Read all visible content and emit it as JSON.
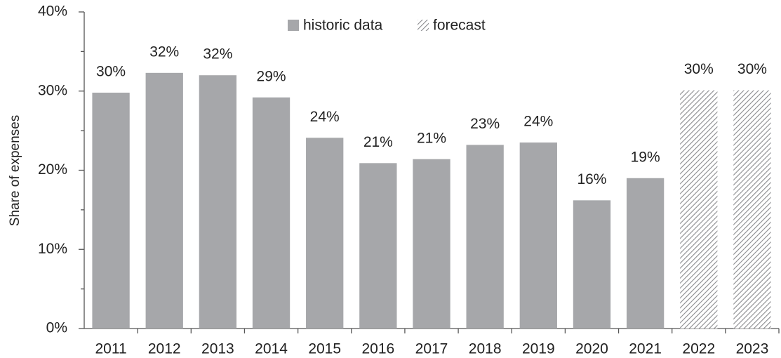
{
  "chart_data": {
    "type": "bar",
    "y_label": "Share of expenses",
    "categories": [
      "2011",
      "2012",
      "2013",
      "2014",
      "2015",
      "2016",
      "2017",
      "2018",
      "2019",
      "2020",
      "2021",
      "2022",
      "2023"
    ],
    "series": [
      {
        "name": "historic data",
        "color": "#a6a7aa",
        "hatch": false,
        "values": [
          29.8,
          32.3,
          32.0,
          29.2,
          24.1,
          20.9,
          21.4,
          23.2,
          23.5,
          16.2,
          19.0,
          null,
          null
        ],
        "value_labels": [
          "30%",
          "32%",
          "32%",
          "29%",
          "24%",
          "21%",
          "21%",
          "23%",
          "24%",
          "16%",
          "19%",
          null,
          null
        ]
      },
      {
        "name": "forecast",
        "color": "#8a8b8e",
        "hatch": true,
        "values": [
          null,
          null,
          null,
          null,
          null,
          null,
          null,
          null,
          null,
          null,
          null,
          30.1,
          30.1
        ],
        "value_labels": [
          null,
          null,
          null,
          null,
          null,
          null,
          null,
          null,
          null,
          null,
          null,
          "30%",
          "30%"
        ]
      }
    ],
    "ylim": [
      0,
      40
    ],
    "yticks": [
      {
        "value": 0,
        "label": "0%"
      },
      {
        "value": 10,
        "label": "10%"
      },
      {
        "value": 20,
        "label": "20%"
      },
      {
        "value": 30,
        "label": "30%"
      },
      {
        "value": 40,
        "label": "40%"
      }
    ],
    "minor_yticks": [
      5,
      15,
      25,
      35
    ],
    "legend": "top"
  }
}
